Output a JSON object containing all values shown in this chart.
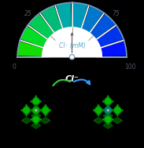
{
  "title_top": "Cl⁻ (mM)",
  "title_bottom": "Cl⁻",
  "gauge_colors": [
    "#11dd00",
    "#00dd22",
    "#00cc55",
    "#00bb77",
    "#00aaaa",
    "#0099bb",
    "#0077cc",
    "#0055dd",
    "#0033ee",
    "#0011ff"
  ],
  "background_top": "#e8e8e8",
  "background_bottom": "#000000",
  "border_color": "#7799bb",
  "needle_color": "#666666",
  "label_color": "#55aacc",
  "arrow_color_green": "#33cc44",
  "arrow_color_blue": "#3399ff"
}
